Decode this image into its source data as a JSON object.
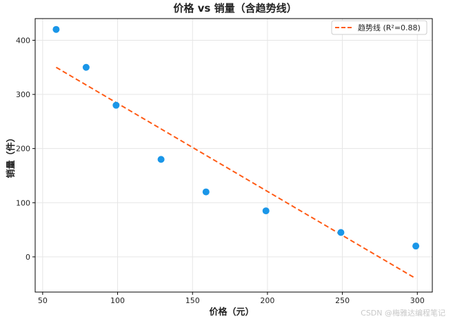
{
  "chart_data": {
    "type": "scatter",
    "title": "价格 vs 销量（含趋势线）",
    "xlabel": "价格（元）",
    "ylabel": "销量（件）",
    "xlim": [
      45,
      310
    ],
    "ylim": [
      -65,
      440
    ],
    "xticks": [
      50,
      100,
      150,
      200,
      250,
      300
    ],
    "yticks": [
      0,
      100,
      200,
      300,
      400
    ],
    "grid": true,
    "legend_position": "top-right",
    "colors": {
      "points": "#1a96e8",
      "trend": "#ff5a14"
    },
    "series": [
      {
        "type": "scatter",
        "x": [
          59,
          79,
          99,
          129,
          159,
          199,
          249,
          299
        ],
        "y": [
          420,
          350,
          280,
          180,
          120,
          85,
          45,
          20
        ]
      },
      {
        "type": "line",
        "name": "趋势线 (R²=0.88)",
        "style": "dashed",
        "x": [
          59,
          299
        ],
        "y": [
          350,
          -40
        ]
      }
    ]
  },
  "watermark": "CSDN @梅雅达编程笔记"
}
